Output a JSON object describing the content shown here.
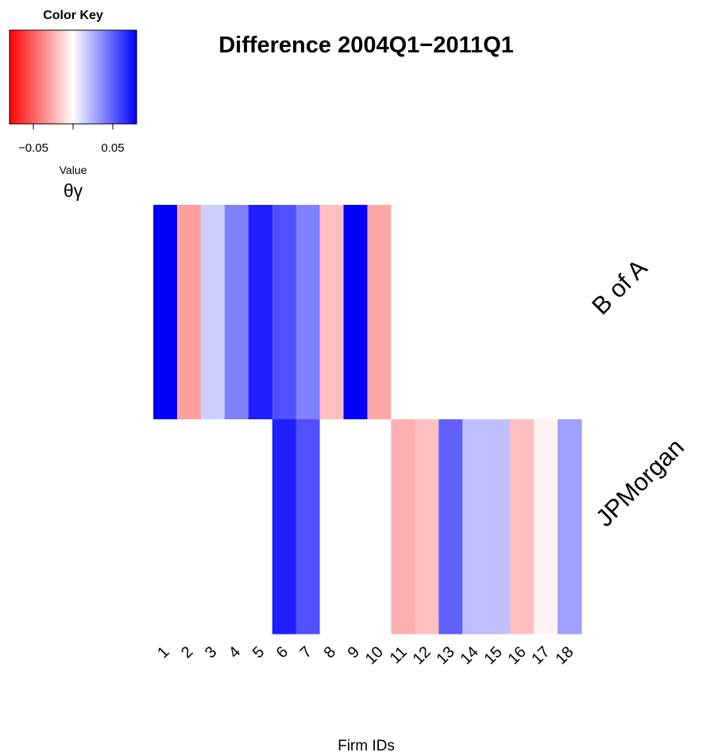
{
  "chart_data": {
    "type": "heatmap",
    "title": "Difference 2004Q1−2011Q1",
    "xlabel": "Firm IDs",
    "rows": [
      "B of A",
      "JPMorgan"
    ],
    "columns": [
      "1",
      "2",
      "3",
      "4",
      "5",
      "6",
      "7",
      "8",
      "9",
      "10",
      "11",
      "12",
      "13",
      "14",
      "15",
      "16",
      "17",
      "18"
    ],
    "values": [
      [
        0.08,
        -0.03,
        0.015,
        0.04,
        0.07,
        0.055,
        0.04,
        -0.02,
        0.08,
        -0.028,
        0,
        0,
        0,
        0,
        0,
        0,
        0,
        0
      ],
      [
        0,
        0,
        0,
        0,
        0,
        0.07,
        0.055,
        0,
        0,
        0,
        -0.025,
        -0.02,
        0.05,
        0.02,
        0.02,
        -0.02,
        -0.004,
        0.03
      ]
    ],
    "color_key": {
      "title": "Color Key",
      "xlabel": "Value",
      "sublabel": "θγ",
      "range": [
        -0.08,
        0.08
      ],
      "ticks": [
        -0.05,
        0.05
      ],
      "tick_labels": [
        "−0.05",
        "0.05"
      ],
      "low_color": "#ff0000",
      "mid_color": "#ffffff",
      "high_color": "#0000ff"
    }
  }
}
